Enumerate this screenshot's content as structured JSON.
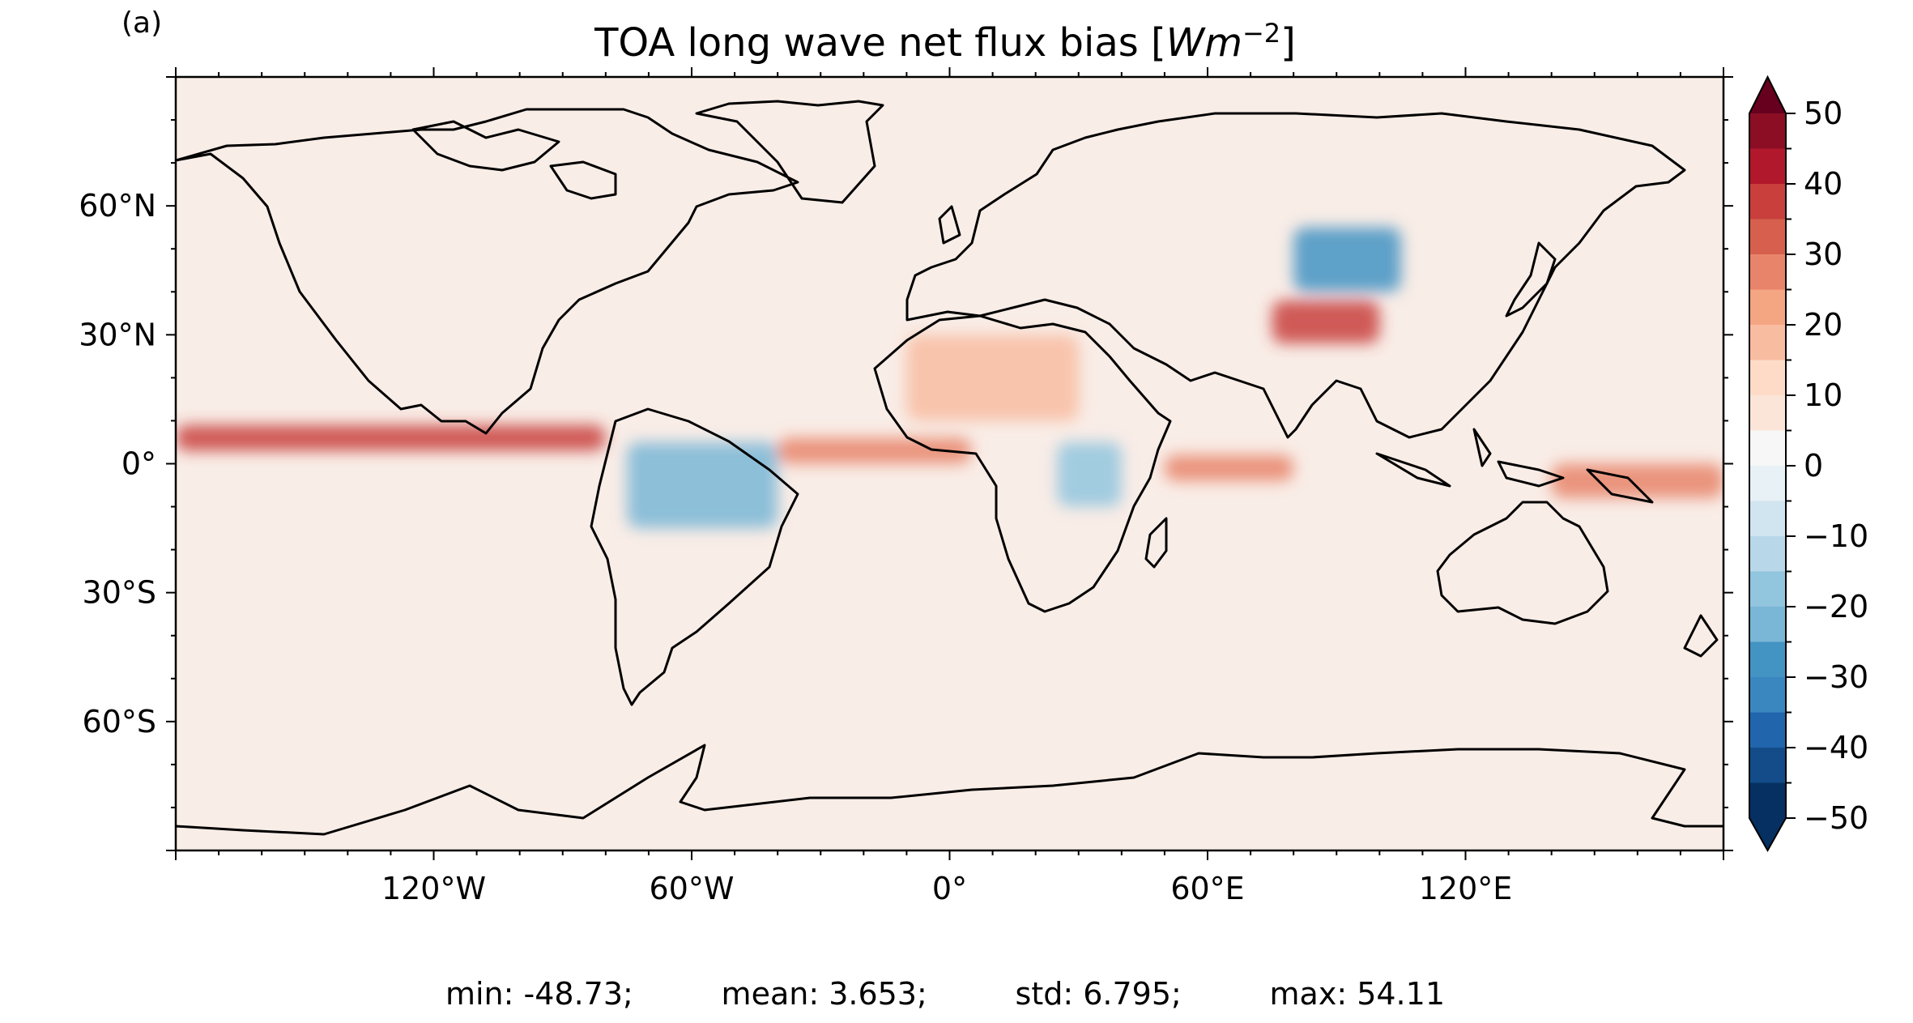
{
  "panel_label": "(a)",
  "title": {
    "text": "TOA long wave net flux bias [",
    "unit_base": "Wm",
    "unit_exponent": "−2",
    "suffix": "]"
  },
  "stats": {
    "min": "min: -48.73;",
    "mean": "mean: 3.653;",
    "std": "std: 6.795;",
    "max": "max: 54.11"
  },
  "map": {
    "projection": "PlateCarree",
    "lon_range": [
      -180,
      180
    ],
    "lat_range": [
      -90,
      90
    ],
    "lon_ticks": [
      {
        "value": -120,
        "label": "120°W"
      },
      {
        "value": -60,
        "label": "60°W"
      },
      {
        "value": 0,
        "label": "0°"
      },
      {
        "value": 60,
        "label": "60°E"
      },
      {
        "value": 120,
        "label": "120°E"
      }
    ],
    "lat_ticks": [
      {
        "value": 60,
        "label": "60°N"
      },
      {
        "value": 30,
        "label": "30°N"
      },
      {
        "value": 0,
        "label": "0°"
      },
      {
        "value": -30,
        "label": "30°S"
      },
      {
        "value": -60,
        "label": "60°S"
      }
    ],
    "colormap": "RdBu_r",
    "field_features": [
      {
        "region": "tropical east Pacific ITCZ",
        "lon": [
          -180,
          -80
        ],
        "lat": [
          3,
          9
        ],
        "value": 38
      },
      {
        "region": "Atlantic ITCZ",
        "lon": [
          -40,
          5
        ],
        "lat": [
          0,
          6
        ],
        "value": 25
      },
      {
        "region": "Indian Ocean",
        "lon": [
          50,
          80
        ],
        "lat": [
          -4,
          2
        ],
        "value": 28
      },
      {
        "region": "Maritime Continent / west Pacific",
        "lon": [
          140,
          180
        ],
        "lat": [
          -8,
          0
        ],
        "value": 28
      },
      {
        "region": "Tibetan Plateau",
        "lon": [
          75,
          100
        ],
        "lat": [
          28,
          38
        ],
        "value": 35
      },
      {
        "region": "Central Asia",
        "lon": [
          80,
          105
        ],
        "lat": [
          40,
          55
        ],
        "value": -30
      },
      {
        "region": "Amazon / Andes",
        "lon": [
          -75,
          -40
        ],
        "lat": [
          -15,
          5
        ],
        "value": -25
      },
      {
        "region": "East Africa",
        "lon": [
          25,
          40
        ],
        "lat": [
          -10,
          5
        ],
        "value": -20
      },
      {
        "region": "Sahara",
        "lon": [
          -10,
          30
        ],
        "lat": [
          10,
          30
        ],
        "value": 15
      }
    ]
  },
  "colorbar": {
    "levels": [
      -50,
      -45,
      -40,
      -35,
      -30,
      -25,
      -20,
      -15,
      -10,
      -5,
      0,
      5,
      10,
      15,
      20,
      25,
      30,
      35,
      40,
      45,
      50
    ],
    "colors": [
      "#053061",
      "#134c88",
      "#2166ac",
      "#3a87bf",
      "#4393c3",
      "#7ab6d6",
      "#92c5de",
      "#b8d8e9",
      "#d1e5f0",
      "#e8f1f6",
      "#f7f7f7",
      "#fbe5d8",
      "#fddbc7",
      "#f8bca1",
      "#f4a582",
      "#e8846a",
      "#d6604d",
      "#c83f3c",
      "#b2182b",
      "#8b0e25"
    ],
    "extend_low": "#053061",
    "extend_high": "#67001f",
    "tick_labels": [
      {
        "value": 50,
        "label": "50"
      },
      {
        "value": 40,
        "label": "40"
      },
      {
        "value": 30,
        "label": "30"
      },
      {
        "value": 20,
        "label": "20"
      },
      {
        "value": 10,
        "label": "10"
      },
      {
        "value": 0,
        "label": "0"
      },
      {
        "value": -10,
        "label": "−10"
      },
      {
        "value": -20,
        "label": "−20"
      },
      {
        "value": -30,
        "label": "−30"
      },
      {
        "value": -40,
        "label": "−40"
      },
      {
        "value": -50,
        "label": "−50"
      }
    ]
  }
}
